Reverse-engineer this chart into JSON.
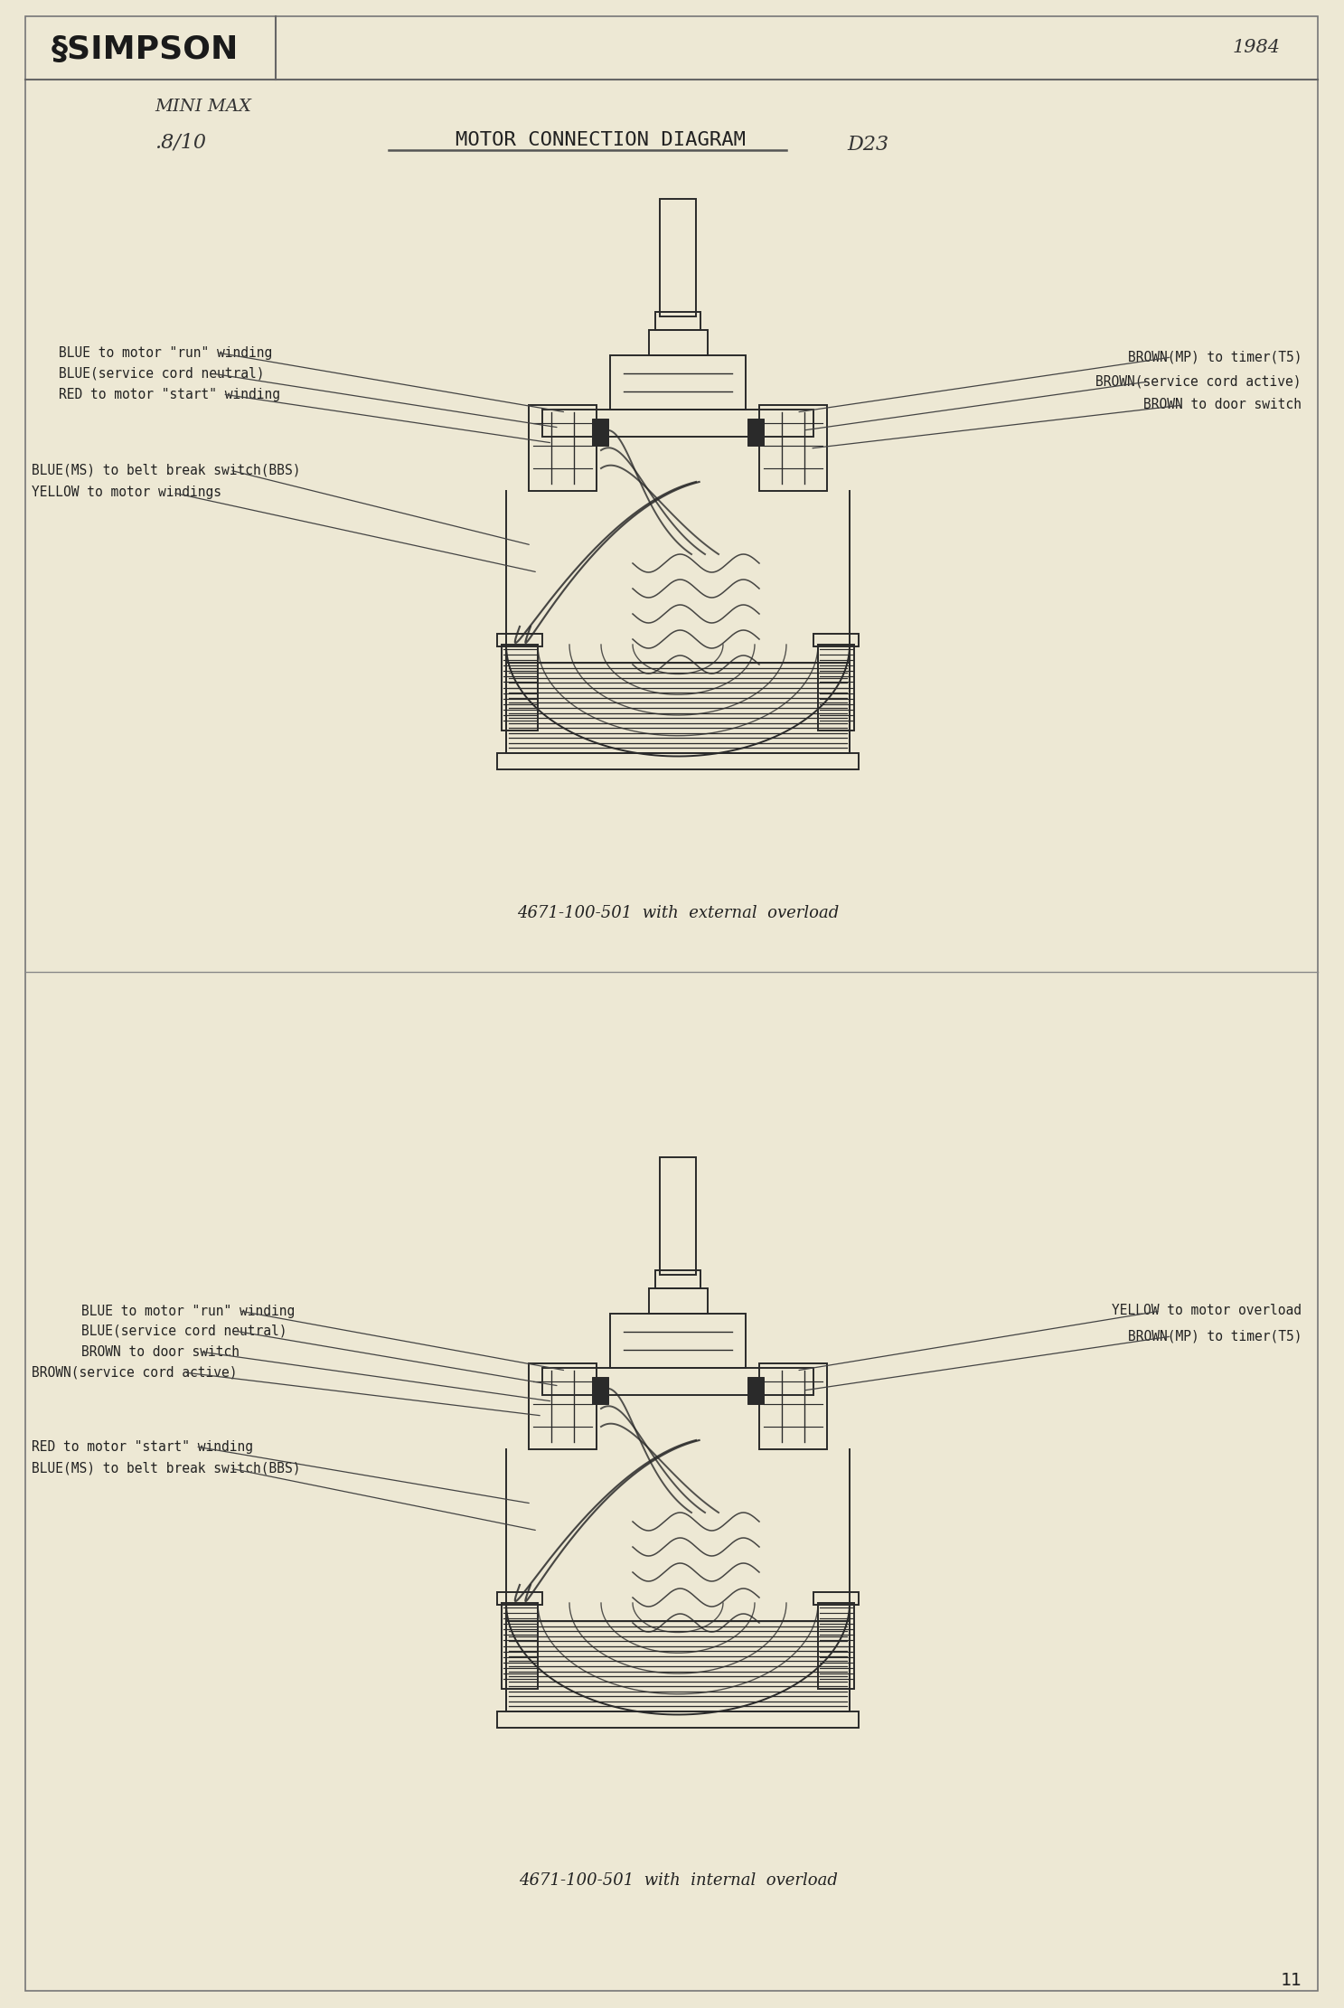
{
  "bg_color": "#ede8d4",
  "border_color": "#666666",
  "title_main": "MOTOR CONNECTION DIAGRAM",
  "handwritten_model": "MINI MAX",
  "handwritten_version": ".8/10",
  "handwritten_code": "D23",
  "handwritten_year": "1984",
  "diagram1_caption": "4671-100-501  with  external  overload",
  "diagram2_caption": "4671-100-501  with  internal  overload",
  "page_number": "11",
  "diagram1_labels_left": [
    "BLUE to motor \"run\" winding",
    "BLUE(service cord neutral)",
    "RED to motor \"start\" winding",
    "BLUE(MS) to belt break switch(BBS)",
    "YELLOW to motor windings"
  ],
  "diagram1_labels_right": [
    "BROWN(MP) to timer(T5)",
    "BROWN(service cord active)",
    "BROWN to door switch"
  ],
  "diagram2_labels_left": [
    "BLUE to motor \"run\" winding",
    "BLUE(service cord neutral)",
    "BROWN to door switch",
    "BROWN(service cord active)",
    "RED to motor \"start\" winding",
    "BLUE(MS) to belt break switch(BBS)"
  ],
  "diagram2_labels_right": [
    "YELLOW to motor overload",
    "BROWN(MP) to timer(T5)"
  ],
  "text_color": "#222222",
  "line_color": "#333333",
  "diagram_color": "#2a2a2a",
  "font_size_label": 10.5,
  "font_size_caption": 13,
  "font_size_title": 16,
  "font_size_brand": 26
}
